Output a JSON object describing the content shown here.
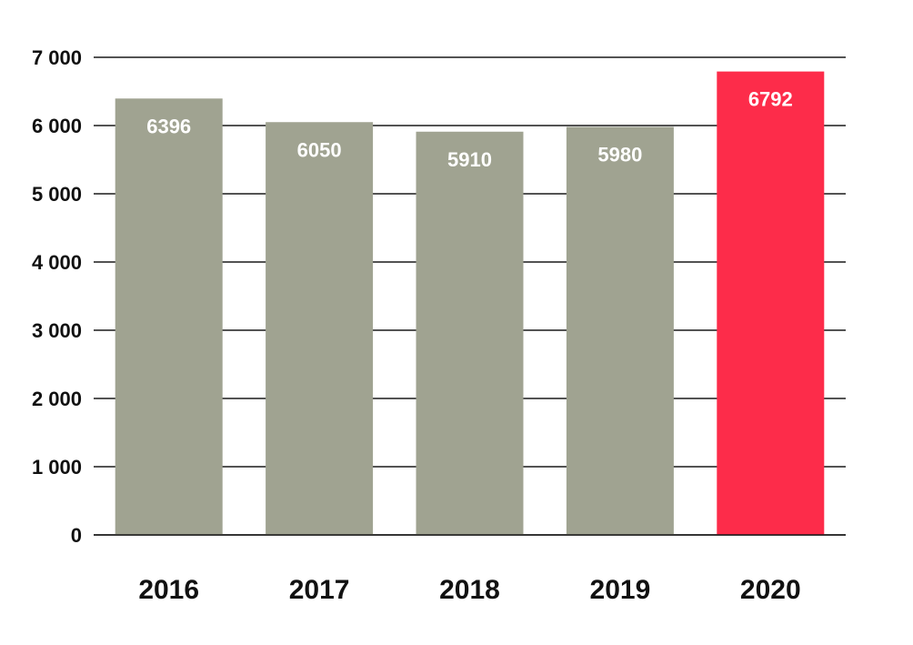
{
  "chart_data": {
    "type": "bar",
    "categories": [
      "2016",
      "2017",
      "2018",
      "2019",
      "2020"
    ],
    "values": [
      6396,
      6050,
      5910,
      5980,
      6792
    ],
    "y_ticks": [
      {
        "value": 0,
        "label": "0"
      },
      {
        "value": 1000,
        "label": "1 000"
      },
      {
        "value": 2000,
        "label": "2 000"
      },
      {
        "value": 3000,
        "label": "3 000"
      },
      {
        "value": 4000,
        "label": "4 000"
      },
      {
        "value": 5000,
        "label": "5 000"
      },
      {
        "value": 6000,
        "label": "6 000"
      },
      {
        "value": 7000,
        "label": "7 000"
      }
    ],
    "ylim": [
      0,
      7000
    ],
    "grid": true,
    "title": "",
    "xlabel": "",
    "ylabel": "",
    "colors": {
      "default_bar": "#a0a391",
      "highlight_bar": "#fd2c4a",
      "highlight_category": "2020"
    }
  }
}
